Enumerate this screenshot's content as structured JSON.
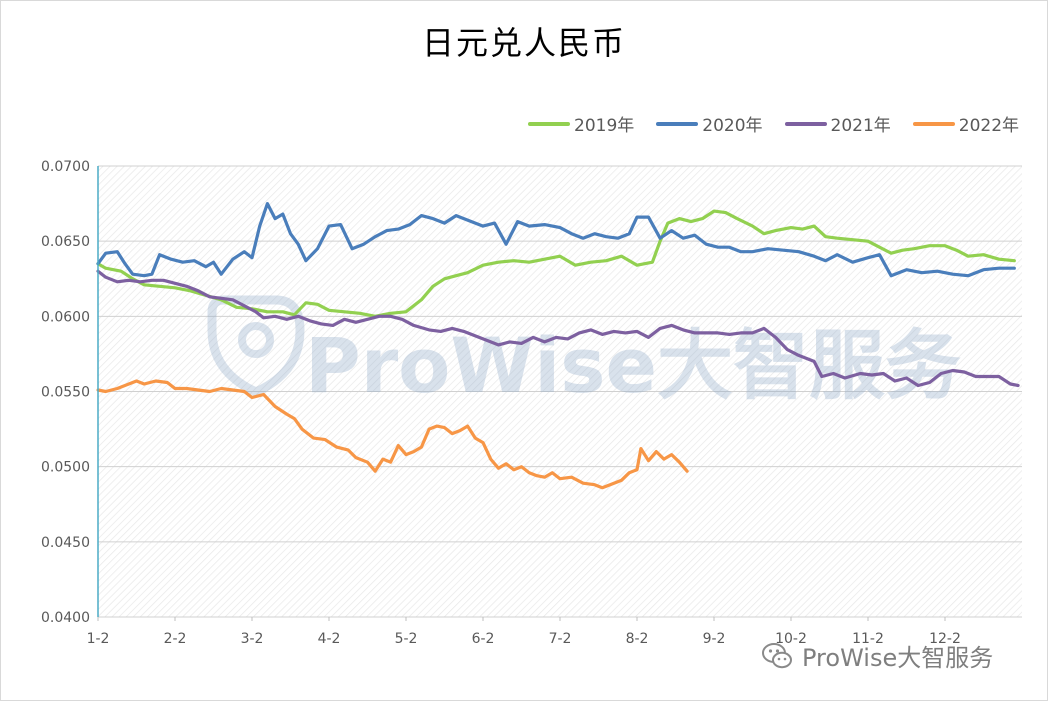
{
  "chart_data": {
    "type": "line",
    "title": "日元兑人民币",
    "xlabel": "",
    "ylabel": "",
    "x_ticks": [
      "1-2",
      "2-2",
      "3-2",
      "4-2",
      "5-2",
      "6-2",
      "7-2",
      "8-2",
      "9-2",
      "10-2",
      "11-2",
      "12-2"
    ],
    "y_ticks": [
      "0.0400",
      "0.0450",
      "0.0500",
      "0.0550",
      "0.0600",
      "0.0650",
      "0.0700"
    ],
    "ylim": [
      0.04,
      0.07
    ],
    "grid": true,
    "legend_position": "top-right",
    "series": [
      {
        "name": "2019年",
        "color": "#92d050",
        "points": [
          [
            1.0,
            0.0635
          ],
          [
            1.1,
            0.0632
          ],
          [
            1.3,
            0.063
          ],
          [
            1.45,
            0.0625
          ],
          [
            1.6,
            0.0621
          ],
          [
            1.8,
            0.062
          ],
          [
            2.0,
            0.0619
          ],
          [
            2.2,
            0.0617
          ],
          [
            2.4,
            0.0614
          ],
          [
            2.6,
            0.0611
          ],
          [
            2.8,
            0.0606
          ],
          [
            3.0,
            0.0605
          ],
          [
            3.2,
            0.0603
          ],
          [
            3.4,
            0.0603
          ],
          [
            3.55,
            0.0601
          ],
          [
            3.7,
            0.0609
          ],
          [
            3.85,
            0.0608
          ],
          [
            4.0,
            0.0604
          ],
          [
            4.2,
            0.0603
          ],
          [
            4.4,
            0.0602
          ],
          [
            4.6,
            0.06
          ],
          [
            4.8,
            0.0602
          ],
          [
            5.0,
            0.0603
          ],
          [
            5.2,
            0.0611
          ],
          [
            5.35,
            0.062
          ],
          [
            5.5,
            0.0625
          ],
          [
            5.65,
            0.0627
          ],
          [
            5.8,
            0.0629
          ],
          [
            6.0,
            0.0634
          ],
          [
            6.2,
            0.0636
          ],
          [
            6.4,
            0.0637
          ],
          [
            6.6,
            0.0636
          ],
          [
            6.8,
            0.0638
          ],
          [
            7.0,
            0.064
          ],
          [
            7.2,
            0.0634
          ],
          [
            7.4,
            0.0636
          ],
          [
            7.6,
            0.0637
          ],
          [
            7.8,
            0.064
          ],
          [
            8.0,
            0.0634
          ],
          [
            8.2,
            0.0636
          ],
          [
            8.3,
            0.065
          ],
          [
            8.4,
            0.0662
          ],
          [
            8.55,
            0.0665
          ],
          [
            8.7,
            0.0663
          ],
          [
            8.85,
            0.0665
          ],
          [
            9.0,
            0.067
          ],
          [
            9.15,
            0.0669
          ],
          [
            9.3,
            0.0665
          ],
          [
            9.5,
            0.066
          ],
          [
            9.65,
            0.0655
          ],
          [
            9.8,
            0.0657
          ],
          [
            10.0,
            0.0659
          ],
          [
            10.15,
            0.0658
          ],
          [
            10.3,
            0.066
          ],
          [
            10.45,
            0.0653
          ],
          [
            10.6,
            0.0652
          ],
          [
            10.8,
            0.0651
          ],
          [
            11.0,
            0.065
          ],
          [
            11.15,
            0.0646
          ],
          [
            11.3,
            0.0642
          ],
          [
            11.45,
            0.0644
          ],
          [
            11.6,
            0.0645
          ],
          [
            11.8,
            0.0647
          ],
          [
            12.0,
            0.0647
          ],
          [
            12.15,
            0.0644
          ],
          [
            12.3,
            0.064
          ],
          [
            12.5,
            0.0641
          ],
          [
            12.7,
            0.0638
          ],
          [
            12.9,
            0.0637
          ]
        ]
      },
      {
        "name": "2020年",
        "color": "#4a7ebb",
        "points": [
          [
            1.0,
            0.0635
          ],
          [
            1.1,
            0.0642
          ],
          [
            1.25,
            0.0643
          ],
          [
            1.35,
            0.0635
          ],
          [
            1.45,
            0.0628
          ],
          [
            1.6,
            0.0627
          ],
          [
            1.7,
            0.0628
          ],
          [
            1.8,
            0.0641
          ],
          [
            1.95,
            0.0638
          ],
          [
            2.1,
            0.0636
          ],
          [
            2.25,
            0.0637
          ],
          [
            2.4,
            0.0633
          ],
          [
            2.5,
            0.0636
          ],
          [
            2.6,
            0.0628
          ],
          [
            2.75,
            0.0638
          ],
          [
            2.9,
            0.0643
          ],
          [
            3.0,
            0.0639
          ],
          [
            3.1,
            0.066
          ],
          [
            3.2,
            0.0675
          ],
          [
            3.3,
            0.0665
          ],
          [
            3.4,
            0.0668
          ],
          [
            3.5,
            0.0655
          ],
          [
            3.6,
            0.0648
          ],
          [
            3.7,
            0.0637
          ],
          [
            3.85,
            0.0645
          ],
          [
            4.0,
            0.066
          ],
          [
            4.15,
            0.0661
          ],
          [
            4.3,
            0.0645
          ],
          [
            4.45,
            0.0648
          ],
          [
            4.6,
            0.0653
          ],
          [
            4.75,
            0.0657
          ],
          [
            4.9,
            0.0658
          ],
          [
            5.05,
            0.0661
          ],
          [
            5.2,
            0.0667
          ],
          [
            5.35,
            0.0665
          ],
          [
            5.5,
            0.0662
          ],
          [
            5.65,
            0.0667
          ],
          [
            5.8,
            0.0664
          ],
          [
            6.0,
            0.066
          ],
          [
            6.15,
            0.0662
          ],
          [
            6.3,
            0.0648
          ],
          [
            6.45,
            0.0663
          ],
          [
            6.6,
            0.066
          ],
          [
            6.8,
            0.0661
          ],
          [
            7.0,
            0.0659
          ],
          [
            7.15,
            0.0655
          ],
          [
            7.3,
            0.0652
          ],
          [
            7.45,
            0.0655
          ],
          [
            7.6,
            0.0653
          ],
          [
            7.75,
            0.0652
          ],
          [
            7.9,
            0.0655
          ],
          [
            8.0,
            0.0666
          ],
          [
            8.15,
            0.0666
          ],
          [
            8.3,
            0.0652
          ],
          [
            8.45,
            0.0657
          ],
          [
            8.6,
            0.0652
          ],
          [
            8.75,
            0.0654
          ],
          [
            8.9,
            0.0648
          ],
          [
            9.05,
            0.0646
          ],
          [
            9.2,
            0.0646
          ],
          [
            9.35,
            0.0643
          ],
          [
            9.5,
            0.0643
          ],
          [
            9.7,
            0.0645
          ],
          [
            9.9,
            0.0644
          ],
          [
            10.1,
            0.0643
          ],
          [
            10.3,
            0.064
          ],
          [
            10.45,
            0.0637
          ],
          [
            10.6,
            0.0641
          ],
          [
            10.8,
            0.0636
          ],
          [
            11.0,
            0.0639
          ],
          [
            11.15,
            0.0641
          ],
          [
            11.3,
            0.0627
          ],
          [
            11.5,
            0.0631
          ],
          [
            11.7,
            0.0629
          ],
          [
            11.9,
            0.063
          ],
          [
            12.1,
            0.0628
          ],
          [
            12.3,
            0.0627
          ],
          [
            12.5,
            0.0631
          ],
          [
            12.7,
            0.0632
          ],
          [
            12.9,
            0.0632
          ]
        ]
      },
      {
        "name": "2021年",
        "color": "#7d60a0",
        "points": [
          [
            1.0,
            0.063
          ],
          [
            1.1,
            0.0626
          ],
          [
            1.25,
            0.0623
          ],
          [
            1.4,
            0.0624
          ],
          [
            1.55,
            0.0623
          ],
          [
            1.7,
            0.0624
          ],
          [
            1.85,
            0.0624
          ],
          [
            2.0,
            0.0622
          ],
          [
            2.15,
            0.062
          ],
          [
            2.3,
            0.0617
          ],
          [
            2.45,
            0.0613
          ],
          [
            2.6,
            0.0612
          ],
          [
            2.75,
            0.0611
          ],
          [
            2.9,
            0.0607
          ],
          [
            3.05,
            0.0603
          ],
          [
            3.15,
            0.0599
          ],
          [
            3.3,
            0.06
          ],
          [
            3.45,
            0.0598
          ],
          [
            3.6,
            0.06
          ],
          [
            3.75,
            0.0597
          ],
          [
            3.9,
            0.0595
          ],
          [
            4.05,
            0.0594
          ],
          [
            4.2,
            0.0598
          ],
          [
            4.35,
            0.0596
          ],
          [
            4.5,
            0.0598
          ],
          [
            4.65,
            0.06
          ],
          [
            4.8,
            0.06
          ],
          [
            4.95,
            0.0598
          ],
          [
            5.1,
            0.0594
          ],
          [
            5.3,
            0.0591
          ],
          [
            5.45,
            0.059
          ],
          [
            5.6,
            0.0592
          ],
          [
            5.75,
            0.059
          ],
          [
            5.9,
            0.0587
          ],
          [
            6.05,
            0.0584
          ],
          [
            6.2,
            0.0581
          ],
          [
            6.35,
            0.0583
          ],
          [
            6.5,
            0.0582
          ],
          [
            6.65,
            0.0586
          ],
          [
            6.8,
            0.0583
          ],
          [
            6.95,
            0.0586
          ],
          [
            7.1,
            0.0585
          ],
          [
            7.25,
            0.0589
          ],
          [
            7.4,
            0.0591
          ],
          [
            7.55,
            0.0588
          ],
          [
            7.7,
            0.059
          ],
          [
            7.85,
            0.0589
          ],
          [
            8.0,
            0.059
          ],
          [
            8.15,
            0.0586
          ],
          [
            8.3,
            0.0592
          ],
          [
            8.45,
            0.0594
          ],
          [
            8.6,
            0.0591
          ],
          [
            8.75,
            0.0589
          ],
          [
            8.9,
            0.0589
          ],
          [
            9.05,
            0.0589
          ],
          [
            9.2,
            0.0588
          ],
          [
            9.35,
            0.0589
          ],
          [
            9.5,
            0.0589
          ],
          [
            9.65,
            0.0592
          ],
          [
            9.8,
            0.0586
          ],
          [
            9.95,
            0.0578
          ],
          [
            10.1,
            0.0574
          ],
          [
            10.3,
            0.057
          ],
          [
            10.4,
            0.056
          ],
          [
            10.55,
            0.0562
          ],
          [
            10.7,
            0.0559
          ],
          [
            10.9,
            0.0562
          ],
          [
            11.05,
            0.0561
          ],
          [
            11.2,
            0.0562
          ],
          [
            11.35,
            0.0557
          ],
          [
            11.5,
            0.0559
          ],
          [
            11.65,
            0.0554
          ],
          [
            11.8,
            0.0556
          ],
          [
            11.95,
            0.0562
          ],
          [
            12.1,
            0.0564
          ],
          [
            12.25,
            0.0563
          ],
          [
            12.4,
            0.056
          ],
          [
            12.55,
            0.056
          ],
          [
            12.7,
            0.056
          ],
          [
            12.85,
            0.0555
          ],
          [
            12.95,
            0.0554
          ]
        ]
      },
      {
        "name": "2022年",
        "color": "#f79646",
        "points": [
          [
            1.0,
            0.0551
          ],
          [
            1.1,
            0.055
          ],
          [
            1.25,
            0.0552
          ],
          [
            1.4,
            0.0555
          ],
          [
            1.5,
            0.0557
          ],
          [
            1.6,
            0.0555
          ],
          [
            1.75,
            0.0557
          ],
          [
            1.9,
            0.0556
          ],
          [
            2.0,
            0.0552
          ],
          [
            2.15,
            0.0552
          ],
          [
            2.3,
            0.0551
          ],
          [
            2.45,
            0.055
          ],
          [
            2.6,
            0.0552
          ],
          [
            2.75,
            0.0551
          ],
          [
            2.9,
            0.055
          ],
          [
            3.0,
            0.0546
          ],
          [
            3.15,
            0.0548
          ],
          [
            3.3,
            0.054
          ],
          [
            3.45,
            0.0535
          ],
          [
            3.55,
            0.0532
          ],
          [
            3.65,
            0.0525
          ],
          [
            3.8,
            0.0519
          ],
          [
            3.95,
            0.0518
          ],
          [
            4.1,
            0.0513
          ],
          [
            4.25,
            0.0511
          ],
          [
            4.35,
            0.0506
          ],
          [
            4.5,
            0.0503
          ],
          [
            4.6,
            0.0497
          ],
          [
            4.7,
            0.0505
          ],
          [
            4.8,
            0.0503
          ],
          [
            4.9,
            0.0514
          ],
          [
            5.0,
            0.0508
          ],
          [
            5.1,
            0.051
          ],
          [
            5.2,
            0.0513
          ],
          [
            5.3,
            0.0525
          ],
          [
            5.4,
            0.0527
          ],
          [
            5.5,
            0.0526
          ],
          [
            5.6,
            0.0522
          ],
          [
            5.7,
            0.0524
          ],
          [
            5.8,
            0.0527
          ],
          [
            5.9,
            0.0519
          ],
          [
            6.0,
            0.0516
          ],
          [
            6.1,
            0.0505
          ],
          [
            6.2,
            0.0499
          ],
          [
            6.3,
            0.0502
          ],
          [
            6.4,
            0.0498
          ],
          [
            6.5,
            0.05
          ],
          [
            6.6,
            0.0496
          ],
          [
            6.7,
            0.0494
          ],
          [
            6.8,
            0.0493
          ],
          [
            6.9,
            0.0496
          ],
          [
            7.0,
            0.0492
          ],
          [
            7.15,
            0.0493
          ],
          [
            7.3,
            0.0489
          ],
          [
            7.45,
            0.0488
          ],
          [
            7.55,
            0.0486
          ],
          [
            7.65,
            0.0488
          ],
          [
            7.8,
            0.0491
          ],
          [
            7.9,
            0.0496
          ],
          [
            8.0,
            0.0498
          ],
          [
            8.05,
            0.0512
          ],
          [
            8.15,
            0.0504
          ],
          [
            8.25,
            0.051
          ],
          [
            8.35,
            0.0505
          ],
          [
            8.45,
            0.0508
          ],
          [
            8.55,
            0.0503
          ],
          [
            8.65,
            0.0497
          ]
        ]
      }
    ],
    "watermark": "ProWise大智服务"
  },
  "footer": {
    "wechat_label": "ProWise大智服务",
    "wechat_icon": "wechat-icon"
  }
}
